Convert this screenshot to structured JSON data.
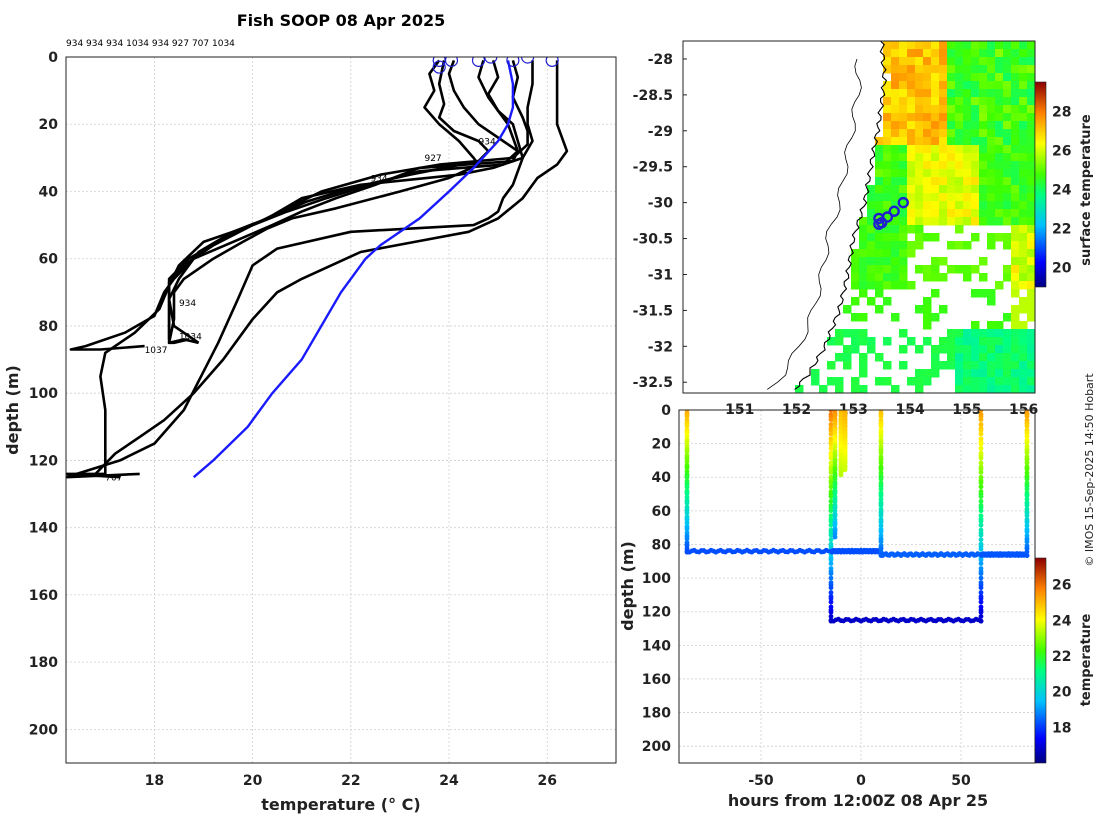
{
  "title": "Fish SOOP 08 Apr 2025",
  "profile_ids_label": "934 934 934 1034 934 927 707 1034",
  "credit": "© IMOS 15-Sep-2025 14:50 Hobart",
  "colors": {
    "profile": "#000000",
    "mean": "#1a1aff",
    "marker": "#2020d0"
  },
  "chart_data": [
    {
      "id": "profile-plot",
      "type": "line",
      "xlabel": "temperature (° C)",
      "ylabel": "depth (m)",
      "xlim": [
        16.2,
        27.4
      ],
      "ylim": [
        210,
        0
      ],
      "xticks": [
        18,
        20,
        22,
        24,
        26
      ],
      "yticks": [
        0,
        20,
        40,
        60,
        80,
        100,
        120,
        140,
        160,
        180,
        200
      ],
      "grid": true,
      "annotations": [
        {
          "text": "934",
          "t": 24.6,
          "d": 26
        },
        {
          "text": "927",
          "t": 23.5,
          "d": 31
        },
        {
          "text": "934",
          "t": 22.4,
          "d": 37
        },
        {
          "text": "934",
          "t": 18.5,
          "d": 74
        },
        {
          "text": "1034",
          "t": 18.5,
          "d": 84
        },
        {
          "text": "1037",
          "t": 17.8,
          "d": 88
        },
        {
          "text": "707",
          "t": 17.0,
          "d": 126
        }
      ],
      "series": [
        {
          "name": "934",
          "t": [
            23.8,
            23.6,
            23.7,
            23.5,
            23.8,
            24.2,
            24.5,
            24.6,
            24.3,
            24.0,
            23.0,
            21.7,
            20.8,
            20.3,
            19.8,
            19.2,
            18.6,
            18.4,
            18.4,
            18.3,
            18.4,
            18.7
          ],
          "d": [
            1,
            5,
            10,
            15,
            20,
            25,
            30,
            32,
            34,
            36,
            40,
            45,
            48,
            51,
            55,
            60,
            66,
            70,
            78,
            85,
            85,
            84
          ]
        },
        {
          "name": "934",
          "t": [
            23.9,
            23.8,
            23.9,
            23.8,
            24.1,
            24.6,
            24.8,
            24.6,
            23.2,
            22.0,
            21.1,
            20.3,
            19.6,
            18.9,
            18.5,
            18.3,
            18.4,
            18.9
          ],
          "d": [
            1,
            8,
            14,
            18,
            22,
            25,
            28,
            31,
            35,
            39,
            43,
            48,
            52,
            58,
            66,
            72,
            80,
            85
          ]
        },
        {
          "name": "934",
          "t": [
            24.1,
            24.0,
            24.1,
            24.3,
            24.6,
            25.1,
            25.4,
            25.3,
            23.4,
            22.5,
            21.7,
            21.0,
            20.4,
            19.6,
            18.8,
            18.4,
            18.2,
            18.0,
            17.4,
            16.6,
            16.3,
            16.9,
            17.8
          ],
          "d": [
            1,
            5,
            10,
            15,
            20,
            25,
            28,
            31,
            33,
            38,
            42,
            46,
            50,
            55,
            60,
            66,
            70,
            77,
            82,
            86,
            87,
            87,
            86
          ]
        },
        {
          "name": "1034",
          "t": [
            24.7,
            24.6,
            24.8,
            25.0,
            25.2,
            25.3,
            25.4,
            25.1,
            23.4,
            22.6,
            21.5,
            20.7,
            20.0,
            19.2,
            18.6,
            18.3,
            18.3,
            18.3,
            18.6,
            18.9
          ],
          "d": [
            1,
            6,
            12,
            16,
            20,
            24,
            28,
            32,
            34,
            37,
            42,
            46,
            50,
            56,
            62,
            67,
            75,
            85,
            84,
            85
          ]
        },
        {
          "name": "934",
          "t": [
            24.9,
            25.0,
            24.8,
            25.0,
            25.3,
            25.4,
            25.5,
            24.9,
            24.2,
            22.2,
            21.0,
            20.3,
            19.4,
            18.7,
            18.3,
            18.3,
            18.3
          ],
          "d": [
            1,
            6,
            11,
            16,
            20,
            25,
            30,
            33,
            35,
            38,
            42,
            48,
            54,
            60,
            66,
            72,
            84
          ]
        },
        {
          "name": "927",
          "t": [
            25.3,
            25.4,
            25.3,
            25.5,
            25.6,
            25.6,
            25.3,
            23.8,
            22.6,
            21.4,
            20.7,
            20.0,
            19.0,
            18.5,
            18.3,
            18.1,
            17.6,
            17.0,
            16.9,
            17.0,
            17.0,
            16.2,
            17.3
          ],
          "d": [
            1,
            6,
            12,
            18,
            22,
            26,
            30,
            32,
            35,
            40,
            45,
            50,
            55,
            62,
            68,
            75,
            82,
            88,
            95,
            105,
            124,
            124,
            125
          ]
        },
        {
          "name": "707",
          "t": [
            25.7,
            25.7,
            25.6,
            25.6,
            25.7,
            25.5,
            25.4,
            25.3,
            25.1,
            25.0,
            24.8,
            24.5,
            22.0,
            20.5,
            20.0,
            19.7,
            19.3,
            18.6,
            18.0,
            17.3,
            16.2,
            17.7
          ],
          "d": [
            1,
            8,
            15,
            20,
            25,
            30,
            34,
            38,
            42,
            46,
            48,
            50,
            52,
            57,
            62,
            72,
            85,
            105,
            115,
            120,
            125,
            124
          ]
        },
        {
          "name": "1034",
          "t": [
            26.2,
            26.2,
            26.2,
            26.2,
            26.2,
            26.4,
            26.2,
            25.8,
            25.5,
            25.0,
            24.4,
            23.3,
            22.2,
            21.6,
            21.0,
            20.5,
            20.0,
            19.4,
            18.8,
            18.2,
            17.7,
            17.2,
            16.8
          ],
          "d": [
            1,
            5,
            10,
            15,
            20,
            28,
            32,
            36,
            42,
            48,
            52,
            55,
            58,
            62,
            66,
            70,
            78,
            90,
            100,
            108,
            113,
            118,
            124
          ]
        }
      ],
      "mean_series": {
        "name": "mean",
        "t": [
          25.2,
          25.3,
          25.3,
          25.2,
          25.0,
          24.5,
          24.0,
          23.4,
          22.6,
          22.3,
          21.8,
          21.0,
          20.4,
          19.9,
          19.2,
          18.8
        ],
        "d": [
          1,
          8,
          15,
          20,
          25,
          33,
          40,
          48,
          56,
          60,
          70,
          90,
          100,
          110,
          120,
          125
        ]
      },
      "markers": [
        {
          "t": 23.8,
          "d": 1
        },
        {
          "t": 23.8,
          "d": 3
        },
        {
          "t": 24.05,
          "d": 1
        },
        {
          "t": 24.6,
          "d": 1
        },
        {
          "t": 24.85,
          "d": 0
        },
        {
          "t": 25.3,
          "d": 1
        },
        {
          "t": 25.6,
          "d": 0
        },
        {
          "t": 26.1,
          "d": 1
        }
      ]
    },
    {
      "id": "map-plot",
      "type": "heatmap",
      "lon_lim": [
        150.0,
        156.2
      ],
      "lat_lim": [
        -32.65,
        -27.75
      ],
      "lat_ticks": [
        -28,
        -28.5,
        -29,
        -29.5,
        -30,
        -30.5,
        -31,
        -31.5,
        -32,
        -32.5
      ],
      "lat_tick_labels": [
        "-28",
        "-28.5",
        "-29",
        "-29.5",
        "-30",
        "-30.5",
        "-31",
        "-31.5",
        "-32",
        "-32.5"
      ],
      "lon_ticks": [
        151,
        152,
        153,
        154,
        155,
        156
      ],
      "colorbar": {
        "label": "surface temperature",
        "range": [
          19,
          29.5
        ],
        "ticks": [
          20,
          22,
          24,
          26,
          28
        ]
      },
      "stations": [
        {
          "lon": 153.45,
          "lat": -30.3
        },
        {
          "lon": 153.5,
          "lat": -30.28
        },
        {
          "lon": 153.6,
          "lat": -30.2
        },
        {
          "lon": 153.72,
          "lat": -30.12
        },
        {
          "lon": 153.88,
          "lat": -30.0
        },
        {
          "lon": 153.45,
          "lat": -30.22
        }
      ]
    },
    {
      "id": "time-depth-plot",
      "type": "scatter",
      "xlabel": "hours from 12:00Z 08 Apr 25",
      "ylabel": "depth (m)",
      "xlim": [
        -91,
        87
      ],
      "ylim": [
        210,
        0
      ],
      "xticks": [
        -50,
        0,
        50
      ],
      "yticks": [
        0,
        20,
        40,
        60,
        80,
        100,
        120,
        140,
        160,
        180,
        200
      ],
      "colorbar": {
        "label": "temperature",
        "range": [
          16,
          27.5
        ],
        "ticks": [
          18,
          20,
          22,
          24,
          26
        ]
      },
      "segments": [
        {
          "x": [
            -87,
            -87
          ],
          "d": [
            0,
            84
          ],
          "t": [
            25.3,
            18.2
          ]
        },
        {
          "x": [
            -87,
            -15
          ],
          "d": [
            84,
            84
          ],
          "t": [
            18.2,
            18.2
          ]
        },
        {
          "x": [
            -15,
            -15
          ],
          "d": [
            0,
            125
          ],
          "t": [
            26.0,
            16.8
          ]
        },
        {
          "x": [
            -15,
            60
          ],
          "d": [
            125,
            125
          ],
          "t": [
            16.8,
            16.8
          ]
        },
        {
          "x": [
            -13,
            -13
          ],
          "d": [
            0,
            75
          ],
          "t": [
            25.7,
            18.9
          ]
        },
        {
          "x": [
            -10,
            -10
          ],
          "d": [
            0,
            38
          ],
          "t": [
            25.0,
            23.4
          ]
        },
        {
          "x": [
            -8,
            -8
          ],
          "d": [
            0,
            35
          ],
          "t": [
            25.2,
            23.6
          ]
        },
        {
          "x": [
            -15,
            10
          ],
          "d": [
            84,
            84
          ],
          "t": [
            18.2,
            18.2
          ]
        },
        {
          "x": [
            10,
            10
          ],
          "d": [
            0,
            86
          ],
          "t": [
            25.0,
            18.4
          ]
        },
        {
          "x": [
            10,
            60
          ],
          "d": [
            86,
            86
          ],
          "t": [
            18.4,
            18.4
          ]
        },
        {
          "x": [
            60,
            60
          ],
          "d": [
            0,
            125
          ],
          "t": [
            25.5,
            16.8
          ]
        },
        {
          "x": [
            60,
            83
          ],
          "d": [
            86,
            86
          ],
          "t": [
            18.3,
            18.3
          ]
        },
        {
          "x": [
            83,
            83
          ],
          "d": [
            0,
            86
          ],
          "t": [
            25.5,
            18.3
          ]
        }
      ]
    }
  ]
}
